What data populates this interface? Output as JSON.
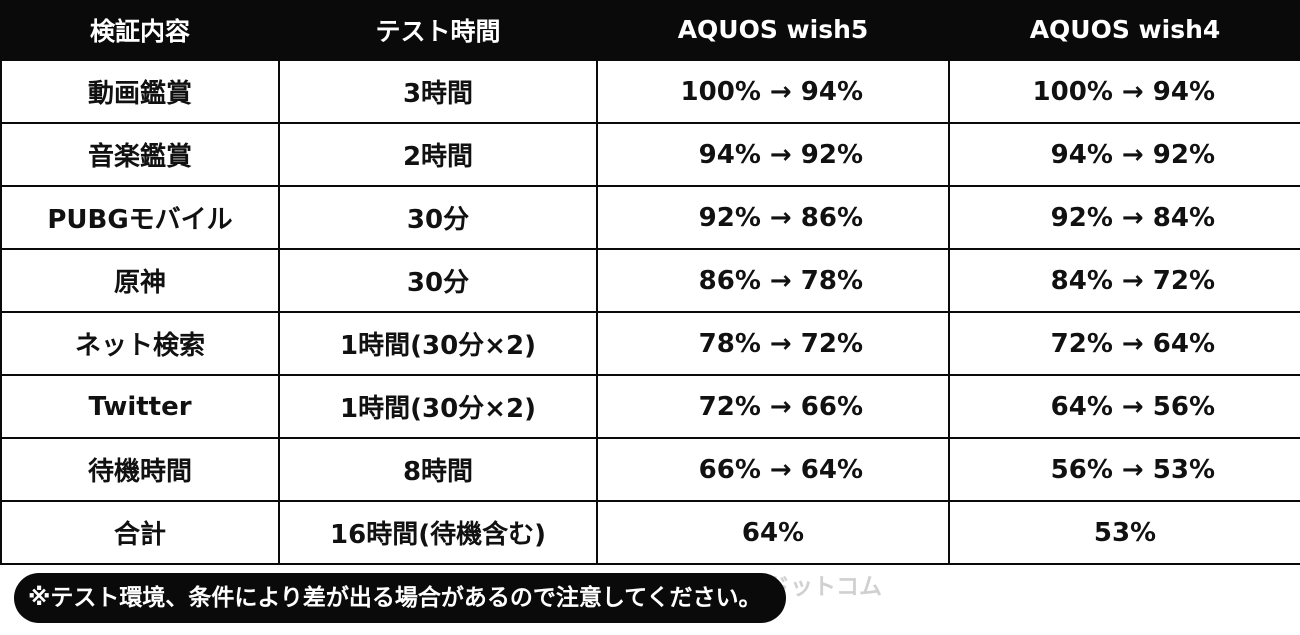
{
  "table": {
    "headers": [
      "検証内容",
      "テスト時間",
      "AQUOS wish5",
      "AQUOS wish4"
    ],
    "rows": [
      {
        "item": "動画鑑賞",
        "time": "3時間",
        "wish5": "100% → 94%",
        "wish4": "100% → 94%"
      },
      {
        "item": "音楽鑑賞",
        "time": "2時間",
        "wish5": "94% → 92%",
        "wish4": "94% → 92%"
      },
      {
        "item": "PUBGモバイル",
        "time": "30分",
        "wish5": "92% → 86%",
        "wish4": "92% → 84%"
      },
      {
        "item": "原神",
        "time": "30分",
        "wish5": "86% → 78%",
        "wish4": "84% → 72%"
      },
      {
        "item": "ネット検索",
        "time": "1時間(30分×2)",
        "wish5": "78% → 72%",
        "wish4": "72% → 64%"
      },
      {
        "item": "Twitter",
        "time": "1時間(30分×2)",
        "wish5": "72% → 66%",
        "wish4": "64% → 56%"
      },
      {
        "item": "待機時間",
        "time": "8時間",
        "wish5": "66% → 64%",
        "wish4": "56% → 53%"
      }
    ],
    "total": {
      "item": "合計",
      "time": "16時間(待機含む)",
      "wish5": "64%",
      "wish4": "53%"
    }
  },
  "note": "※テスト環境、条件により差が出る場合があるので注意してください。",
  "watermark": "@モバイルドットコム",
  "colors": {
    "header_bg": "#0a0a0a",
    "header_text": "#ffffff",
    "border": "#0a0a0a"
  }
}
